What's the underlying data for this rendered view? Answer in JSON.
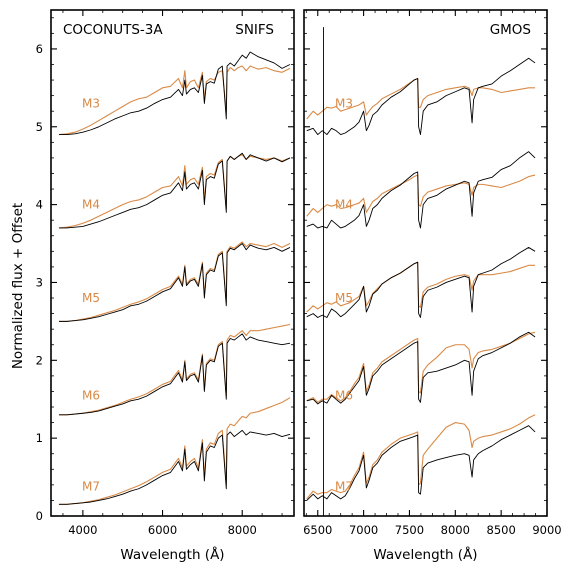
{
  "colors": {
    "observed": "#000000",
    "model": "#d98a47",
    "axes": "#000000"
  },
  "ylabel": "Normalized flux + Offset",
  "chart_data": [
    {
      "type": "line",
      "title": "",
      "corner_left": "COCONUTS-3A",
      "corner_right": "SNIFS",
      "xlabel": "Wavelength (Å)",
      "ylabel": "Normalized flux + Offset",
      "xlim": [
        3200,
        9300
      ],
      "ylim": [
        0,
        6.5
      ],
      "xticks": [
        4000,
        6000,
        8000
      ],
      "yticks": [
        0,
        1,
        2,
        3,
        4,
        5,
        6
      ],
      "grid": false,
      "x": [
        3400,
        3600,
        3800,
        4000,
        4200,
        4400,
        4600,
        4800,
        5000,
        5200,
        5400,
        5600,
        5800,
        6000,
        6200,
        6400,
        6500,
        6560,
        6600,
        6700,
        6800,
        6900,
        7000,
        7050,
        7100,
        7200,
        7300,
        7400,
        7500,
        7600,
        7620,
        7700,
        7800,
        7900,
        8000,
        8100,
        8200,
        8400,
        8600,
        8800,
        9000,
        9200
      ],
      "series": [
        {
          "name": "M3",
          "role": "observed",
          "offset_label": 5.3,
          "values": [
            4.9,
            4.9,
            4.91,
            4.93,
            4.96,
            5.0,
            5.05,
            5.1,
            5.14,
            5.18,
            5.2,
            5.24,
            5.3,
            5.35,
            5.38,
            5.48,
            5.4,
            5.6,
            5.42,
            5.48,
            5.5,
            5.44,
            5.66,
            5.3,
            5.55,
            5.58,
            5.56,
            5.74,
            5.78,
            5.1,
            5.78,
            5.82,
            5.78,
            5.85,
            5.92,
            5.88,
            5.96,
            5.9,
            5.86,
            5.82,
            5.75,
            5.8
          ]
        },
        {
          "name": "M3 model",
          "role": "model",
          "values": [
            4.9,
            4.91,
            4.93,
            4.97,
            5.02,
            5.08,
            5.14,
            5.2,
            5.26,
            5.32,
            5.36,
            5.38,
            5.44,
            5.5,
            5.52,
            5.62,
            5.5,
            5.72,
            5.5,
            5.58,
            5.6,
            5.5,
            5.7,
            5.35,
            5.58,
            5.62,
            5.6,
            5.7,
            5.72,
            5.2,
            5.7,
            5.76,
            5.72,
            5.76,
            5.78,
            5.72,
            5.78,
            5.74,
            5.76,
            5.72,
            5.7,
            5.75
          ]
        },
        {
          "name": "M4",
          "role": "observed",
          "offset_label": 4.0,
          "values": [
            3.7,
            3.7,
            3.71,
            3.72,
            3.75,
            3.78,
            3.82,
            3.86,
            3.9,
            3.94,
            3.96,
            4.0,
            4.06,
            4.12,
            4.15,
            4.28,
            4.18,
            4.42,
            4.2,
            4.26,
            4.28,
            4.2,
            4.44,
            4.0,
            4.32,
            4.36,
            4.34,
            4.52,
            4.56,
            3.9,
            4.56,
            4.62,
            4.58,
            4.62,
            4.66,
            4.58,
            4.64,
            4.6,
            4.56,
            4.6,
            4.55,
            4.6
          ]
        },
        {
          "name": "M4 model",
          "role": "model",
          "values": [
            3.7,
            3.71,
            3.73,
            3.76,
            3.8,
            3.85,
            3.9,
            3.95,
            4.0,
            4.04,
            4.06,
            4.1,
            4.16,
            4.22,
            4.24,
            4.36,
            4.24,
            4.5,
            4.26,
            4.32,
            4.34,
            4.26,
            4.48,
            4.05,
            4.36,
            4.4,
            4.38,
            4.54,
            4.58,
            3.95,
            4.56,
            4.62,
            4.58,
            4.62,
            4.64,
            4.58,
            4.62,
            4.6,
            4.58,
            4.6,
            4.56,
            4.6
          ]
        },
        {
          "name": "M5",
          "role": "observed",
          "offset_label": 2.8,
          "values": [
            2.5,
            2.5,
            2.51,
            2.52,
            2.54,
            2.56,
            2.59,
            2.62,
            2.65,
            2.7,
            2.72,
            2.76,
            2.82,
            2.88,
            2.92,
            3.06,
            2.95,
            3.2,
            2.96,
            3.02,
            3.04,
            2.95,
            3.24,
            2.8,
            3.1,
            3.16,
            3.14,
            3.34,
            3.38,
            2.7,
            3.38,
            3.44,
            3.42,
            3.46,
            3.5,
            3.42,
            3.48,
            3.44,
            3.42,
            3.45,
            3.4,
            3.45
          ]
        },
        {
          "name": "M5 model",
          "role": "model",
          "values": [
            2.5,
            2.5,
            2.51,
            2.53,
            2.55,
            2.58,
            2.61,
            2.64,
            2.68,
            2.72,
            2.75,
            2.79,
            2.85,
            2.91,
            2.95,
            3.08,
            2.98,
            3.22,
            2.98,
            3.04,
            3.06,
            2.98,
            3.26,
            2.84,
            3.12,
            3.18,
            3.16,
            3.36,
            3.4,
            2.74,
            3.4,
            3.46,
            3.44,
            3.48,
            3.52,
            3.46,
            3.5,
            3.48,
            3.46,
            3.5,
            3.45,
            3.5
          ]
        },
        {
          "name": "M6",
          "role": "observed",
          "offset_label": 1.55,
          "values": [
            1.3,
            1.3,
            1.31,
            1.32,
            1.33,
            1.35,
            1.38,
            1.41,
            1.44,
            1.48,
            1.5,
            1.54,
            1.6,
            1.66,
            1.7,
            1.84,
            1.72,
            1.98,
            1.74,
            1.8,
            1.82,
            1.72,
            2.06,
            1.6,
            1.94,
            2.0,
            1.98,
            2.18,
            2.22,
            1.5,
            2.22,
            2.28,
            2.26,
            2.3,
            2.34,
            2.26,
            2.3,
            2.26,
            2.24,
            2.22,
            2.2,
            2.22
          ]
        },
        {
          "name": "M6 model",
          "role": "model",
          "values": [
            1.3,
            1.3,
            1.31,
            1.32,
            1.34,
            1.36,
            1.39,
            1.42,
            1.46,
            1.5,
            1.53,
            1.57,
            1.63,
            1.69,
            1.73,
            1.87,
            1.75,
            2.0,
            1.76,
            1.82,
            1.84,
            1.75,
            2.08,
            1.62,
            1.96,
            2.02,
            2.0,
            2.2,
            2.24,
            1.54,
            2.26,
            2.32,
            2.3,
            2.34,
            2.38,
            2.32,
            2.38,
            2.38,
            2.4,
            2.42,
            2.44,
            2.46
          ]
        },
        {
          "name": "M7",
          "role": "observed",
          "offset_label": 0.38,
          "values": [
            0.15,
            0.15,
            0.16,
            0.17,
            0.18,
            0.2,
            0.22,
            0.25,
            0.28,
            0.32,
            0.35,
            0.4,
            0.46,
            0.52,
            0.56,
            0.7,
            0.58,
            0.86,
            0.6,
            0.66,
            0.7,
            0.58,
            0.94,
            0.45,
            0.82,
            0.9,
            0.88,
            1.0,
            1.04,
            0.35,
            1.04,
            1.08,
            1.02,
            1.06,
            1.1,
            1.04,
            1.08,
            1.06,
            1.04,
            1.06,
            1.02,
            1.05
          ]
        },
        {
          "name": "M7 model",
          "role": "model",
          "values": [
            0.15,
            0.15,
            0.16,
            0.17,
            0.19,
            0.21,
            0.24,
            0.27,
            0.31,
            0.35,
            0.39,
            0.44,
            0.5,
            0.56,
            0.6,
            0.74,
            0.62,
            0.9,
            0.64,
            0.7,
            0.74,
            0.62,
            0.98,
            0.5,
            0.86,
            0.94,
            0.92,
            1.06,
            1.1,
            0.4,
            1.12,
            1.18,
            1.16,
            1.22,
            1.28,
            1.26,
            1.32,
            1.34,
            1.38,
            1.42,
            1.46,
            1.52
          ]
        }
      ]
    },
    {
      "type": "line",
      "title": "",
      "corner_left": "",
      "corner_right": "GMOS",
      "xlabel": "Wavelength (Å)",
      "ylabel": "",
      "xlim": [
        6350,
        9000
      ],
      "ylim": [
        0,
        6.5
      ],
      "xticks": [
        6500,
        7000,
        7500,
        8000,
        8500,
        9000
      ],
      "yticks": [
        0,
        1,
        2,
        3,
        4,
        5,
        6
      ],
      "grid": false,
      "spike": {
        "x": 6563,
        "y_top": 6.28
      },
      "x": [
        6380,
        6450,
        6500,
        6550,
        6600,
        6650,
        6700,
        6750,
        6800,
        6850,
        6900,
        6950,
        7000,
        7030,
        7060,
        7100,
        7150,
        7200,
        7300,
        7400,
        7500,
        7550,
        7590,
        7600,
        7620,
        7650,
        7700,
        7800,
        7900,
        8000,
        8100,
        8150,
        8183,
        8200,
        8250,
        8300,
        8400,
        8500,
        8600,
        8700,
        8800,
        8870
      ],
      "series": [
        {
          "name": "M3",
          "role": "observed",
          "offset_label": 5.3,
          "values": [
            4.95,
            4.98,
            4.9,
            4.95,
            4.9,
            4.98,
            4.95,
            4.9,
            4.92,
            4.96,
            5.0,
            5.06,
            5.2,
            4.95,
            5.02,
            5.15,
            5.2,
            5.28,
            5.38,
            5.45,
            5.55,
            5.6,
            5.62,
            5.0,
            4.9,
            5.2,
            5.28,
            5.32,
            5.4,
            5.45,
            5.5,
            5.48,
            5.05,
            5.35,
            5.5,
            5.52,
            5.55,
            5.65,
            5.72,
            5.8,
            5.88,
            5.82
          ]
        },
        {
          "name": "M3 model",
          "role": "model",
          "values": [
            5.1,
            5.2,
            5.15,
            5.2,
            5.25,
            5.24,
            5.26,
            5.2,
            5.22,
            5.24,
            5.26,
            5.28,
            5.32,
            5.15,
            5.2,
            5.26,
            5.3,
            5.36,
            5.42,
            5.48,
            5.56,
            5.6,
            5.62,
            5.25,
            5.25,
            5.35,
            5.4,
            5.44,
            5.48,
            5.5,
            5.52,
            5.5,
            5.4,
            5.48,
            5.5,
            5.5,
            5.48,
            5.44,
            5.46,
            5.48,
            5.5,
            5.5
          ]
        },
        {
          "name": "M4",
          "role": "observed",
          "offset_label": 4.0,
          "values": [
            3.72,
            3.75,
            3.7,
            3.72,
            3.7,
            3.8,
            3.75,
            3.7,
            3.72,
            3.76,
            3.8,
            3.86,
            4.0,
            3.72,
            3.8,
            3.95,
            4.0,
            4.08,
            4.18,
            4.25,
            4.35,
            4.4,
            4.42,
            3.8,
            3.7,
            4.0,
            4.08,
            4.12,
            4.2,
            4.25,
            4.3,
            4.28,
            3.85,
            4.15,
            4.3,
            4.32,
            4.35,
            4.45,
            4.5,
            4.6,
            4.68,
            4.6
          ]
        },
        {
          "name": "M4 model",
          "role": "model",
          "values": [
            3.85,
            3.95,
            3.9,
            3.95,
            4.0,
            3.98,
            4.0,
            3.95,
            3.96,
            3.98,
            4.0,
            4.02,
            4.08,
            3.9,
            3.96,
            4.04,
            4.08,
            4.14,
            4.2,
            4.26,
            4.32,
            4.36,
            4.38,
            4.0,
            3.98,
            4.1,
            4.16,
            4.2,
            4.24,
            4.26,
            4.28,
            4.26,
            4.12,
            4.22,
            4.26,
            4.26,
            4.24,
            4.22,
            4.26,
            4.3,
            4.36,
            4.38
          ]
        },
        {
          "name": "M5",
          "role": "observed",
          "offset_label": 2.8,
          "values": [
            2.56,
            2.6,
            2.55,
            2.58,
            2.55,
            2.66,
            2.62,
            2.56,
            2.6,
            2.66,
            2.72,
            2.78,
            2.95,
            2.62,
            2.7,
            2.85,
            2.9,
            2.98,
            3.06,
            3.12,
            3.2,
            3.24,
            3.26,
            2.6,
            2.55,
            2.82,
            2.9,
            2.94,
            3.0,
            3.04,
            3.08,
            3.06,
            2.62,
            2.95,
            3.1,
            3.12,
            3.16,
            3.24,
            3.3,
            3.38,
            3.45,
            3.4
          ]
        },
        {
          "name": "M5 model",
          "role": "model",
          "values": [
            2.62,
            2.7,
            2.66,
            2.7,
            2.74,
            2.72,
            2.75,
            2.7,
            2.72,
            2.74,
            2.78,
            2.82,
            2.95,
            2.7,
            2.76,
            2.86,
            2.92,
            2.98,
            3.06,
            3.12,
            3.2,
            3.24,
            3.26,
            2.7,
            2.68,
            2.88,
            2.94,
            2.98,
            3.04,
            3.08,
            3.1,
            3.08,
            2.9,
            3.02,
            3.1,
            3.1,
            3.1,
            3.12,
            3.14,
            3.18,
            3.22,
            3.22
          ]
        },
        {
          "name": "M6",
          "role": "observed",
          "offset_label": 1.55,
          "values": [
            1.48,
            1.5,
            1.44,
            1.48,
            1.45,
            1.55,
            1.5,
            1.45,
            1.5,
            1.58,
            1.66,
            1.74,
            1.92,
            1.55,
            1.64,
            1.8,
            1.86,
            1.94,
            2.02,
            2.1,
            2.18,
            2.22,
            2.24,
            1.5,
            1.46,
            1.78,
            1.84,
            1.86,
            1.9,
            1.94,
            2.0,
            1.98,
            1.55,
            1.86,
            2.02,
            2.06,
            2.1,
            2.16,
            2.22,
            2.3,
            2.36,
            2.3
          ]
        },
        {
          "name": "M6 model",
          "role": "model",
          "values": [
            1.48,
            1.52,
            1.46,
            1.5,
            1.5,
            1.56,
            1.52,
            1.48,
            1.52,
            1.6,
            1.7,
            1.78,
            1.96,
            1.6,
            1.68,
            1.84,
            1.9,
            1.98,
            2.06,
            2.14,
            2.22,
            2.26,
            2.28,
            1.6,
            1.58,
            1.86,
            1.94,
            2.04,
            2.16,
            2.2,
            2.2,
            2.14,
            1.9,
            2.02,
            2.1,
            2.12,
            2.14,
            2.18,
            2.22,
            2.28,
            2.34,
            2.36
          ]
        },
        {
          "name": "M7",
          "role": "observed",
          "offset_label": 0.38,
          "values": [
            0.2,
            0.28,
            0.22,
            0.26,
            0.22,
            0.3,
            0.26,
            0.22,
            0.26,
            0.36,
            0.48,
            0.58,
            0.78,
            0.36,
            0.46,
            0.62,
            0.68,
            0.78,
            0.88,
            0.96,
            1.0,
            1.02,
            1.04,
            0.3,
            0.28,
            0.62,
            0.68,
            0.72,
            0.75,
            0.78,
            0.8,
            0.78,
            0.5,
            0.72,
            0.8,
            0.84,
            0.9,
            0.98,
            1.04,
            1.1,
            1.16,
            1.08
          ]
        },
        {
          "name": "M7 model",
          "role": "model",
          "values": [
            0.22,
            0.32,
            0.28,
            0.3,
            0.3,
            0.34,
            0.32,
            0.3,
            0.32,
            0.4,
            0.52,
            0.62,
            0.82,
            0.42,
            0.5,
            0.66,
            0.72,
            0.82,
            0.92,
            1.0,
            1.04,
            1.06,
            1.08,
            0.4,
            0.42,
            0.78,
            0.86,
            1.0,
            1.14,
            1.2,
            1.18,
            1.1,
            0.88,
            0.96,
            1.0,
            1.02,
            1.04,
            1.08,
            1.12,
            1.18,
            1.26,
            1.3
          ]
        }
      ]
    }
  ]
}
